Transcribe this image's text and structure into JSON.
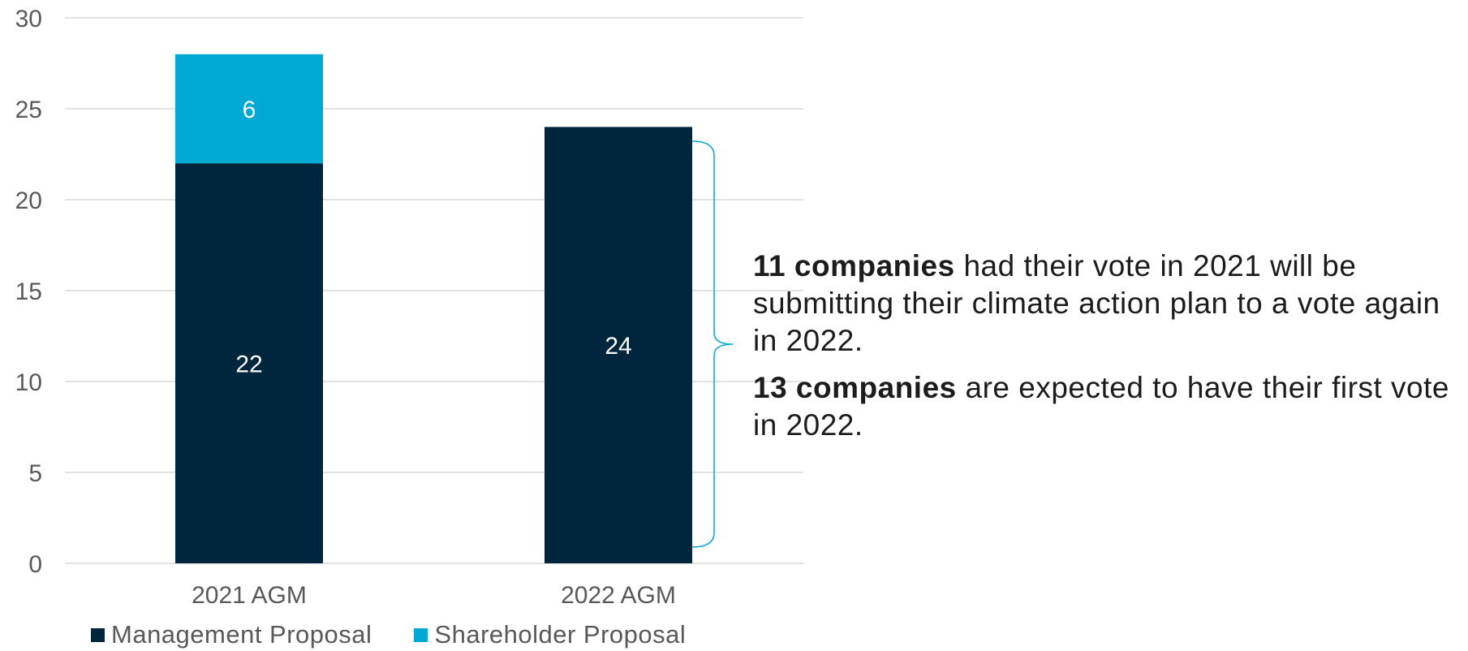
{
  "chart_data": {
    "type": "bar",
    "stacked": true,
    "categories": [
      "2021 AGM",
      "2022 AGM"
    ],
    "series": [
      {
        "name": "Management Proposal",
        "values": [
          22,
          24
        ],
        "color": "#00263e"
      },
      {
        "name": "Shareholder Proposal",
        "values": [
          6,
          0
        ],
        "color": "#00a9d4"
      }
    ],
    "data_labels": [
      {
        "category": "2021 AGM",
        "series": "Management Proposal",
        "label": "22"
      },
      {
        "category": "2021 AGM",
        "series": "Shareholder Proposal",
        "label": "6"
      },
      {
        "category": "2022 AGM",
        "series": "Management Proposal",
        "label": "24"
      }
    ],
    "yticks": [
      "0",
      "5",
      "10",
      "15",
      "20",
      "25",
      "30"
    ],
    "ylim": [
      0,
      30
    ],
    "grid": true,
    "legend_position": "bottom",
    "bracket_color": "#00a9d4"
  },
  "annotation": {
    "p1_bold": "11 companies",
    "p1_text": " had their vote in 2021 will be submitting their climate action plan to a vote again in 2022.",
    "p2_bold": "13 companies",
    "p2_text": " are expected to have their first vote in 2022."
  }
}
